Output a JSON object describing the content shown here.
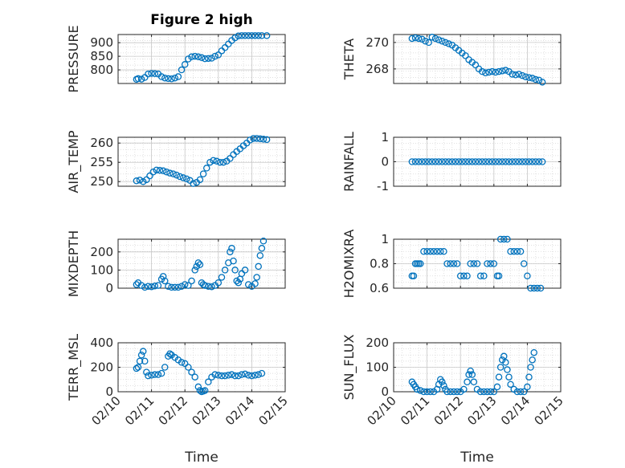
{
  "figure_title": "Figure 2 high",
  "colors": {
    "marker": "#0072bd",
    "axis": "#262626",
    "grid": "#d6d6d6"
  },
  "x_axis": {
    "label": "Time",
    "ticks": [
      {
        "label": "02/10",
        "value": 0
      },
      {
        "label": "02/11",
        "value": 1
      },
      {
        "label": "02/12",
        "value": 2
      },
      {
        "label": "02/13",
        "value": 3
      },
      {
        "label": "02/14",
        "value": 4
      },
      {
        "label": "02/15",
        "value": 5
      }
    ],
    "range": [
      0,
      5
    ]
  },
  "chart_data": [
    {
      "type": "scatter",
      "name": "pressure",
      "title": "Figure 2 high",
      "ylabel": "PRESSURE",
      "ylim": [
        750,
        930
      ],
      "yticks": [
        {
          "label": "800",
          "value": 800
        },
        {
          "label": "850",
          "value": 850
        },
        {
          "label": "900",
          "value": 900
        }
      ],
      "x": [
        0.55,
        0.6,
        0.7,
        0.8,
        0.9,
        1.0,
        1.1,
        1.2,
        1.3,
        1.4,
        1.5,
        1.6,
        1.7,
        1.8,
        1.9,
        2.0,
        2.1,
        2.2,
        2.3,
        2.4,
        2.5,
        2.6,
        2.7,
        2.8,
        2.9,
        3.0,
        3.1,
        3.2,
        3.3,
        3.4,
        3.5,
        3.6,
        3.7,
        3.8,
        3.9,
        4.0,
        4.1,
        4.2,
        4.3,
        4.45
      ],
      "y": [
        765,
        768,
        766,
        772,
        785,
        787,
        786,
        785,
        775,
        770,
        768,
        767,
        770,
        775,
        800,
        820,
        840,
        848,
        850,
        848,
        845,
        841,
        842,
        843,
        850,
        855,
        870,
        882,
        895,
        908,
        918,
        925,
        926,
        926,
        926,
        926,
        926,
        926,
        926,
        926
      ]
    },
    {
      "type": "scatter",
      "name": "theta",
      "title": "",
      "ylabel": "THETA",
      "ylim": [
        266.9,
        270.6
      ],
      "yticks": [
        {
          "label": "268",
          "value": 268
        },
        {
          "label": "270",
          "value": 270
        }
      ],
      "x": [
        0.55,
        0.65,
        0.75,
        0.85,
        0.95,
        1.05,
        1.15,
        1.25,
        1.35,
        1.45,
        1.55,
        1.65,
        1.75,
        1.85,
        1.95,
        2.05,
        2.15,
        2.25,
        2.35,
        2.45,
        2.55,
        2.65,
        2.75,
        2.85,
        2.95,
        3.05,
        3.15,
        3.25,
        3.35,
        3.45,
        3.55,
        3.65,
        3.75,
        3.85,
        3.95,
        4.05,
        4.15,
        4.25,
        4.35,
        4.45
      ],
      "y": [
        270.3,
        270.35,
        270.3,
        270.25,
        270.1,
        270.0,
        270.4,
        270.3,
        270.2,
        270.1,
        270.0,
        269.9,
        269.8,
        269.6,
        269.4,
        269.2,
        269.0,
        268.7,
        268.5,
        268.3,
        268.0,
        267.8,
        267.7,
        267.75,
        267.8,
        267.75,
        267.8,
        267.85,
        267.9,
        267.8,
        267.6,
        267.55,
        267.6,
        267.5,
        267.4,
        267.35,
        267.3,
        267.2,
        267.15,
        267.0
      ]
    },
    {
      "type": "scatter",
      "name": "air_temp",
      "title": "",
      "ylabel": "AIR_TEMP",
      "ylim": [
        248.8,
        261.5
      ],
      "yticks": [
        {
          "label": "250",
          "value": 250
        },
        {
          "label": "255",
          "value": 255
        },
        {
          "label": "260",
          "value": 260
        }
      ],
      "x": [
        0.55,
        0.65,
        0.75,
        0.85,
        0.95,
        1.05,
        1.15,
        1.25,
        1.35,
        1.45,
        1.55,
        1.65,
        1.75,
        1.85,
        1.95,
        2.05,
        2.15,
        2.25,
        2.35,
        2.45,
        2.55,
        2.65,
        2.75,
        2.85,
        2.95,
        3.05,
        3.15,
        3.25,
        3.35,
        3.45,
        3.55,
        3.65,
        3.75,
        3.85,
        3.95,
        4.05,
        4.15,
        4.25,
        4.35,
        4.45
      ],
      "y": [
        250.2,
        250.4,
        250.0,
        250.5,
        251.5,
        252.5,
        253.0,
        252.9,
        252.8,
        252.5,
        252.2,
        252.0,
        251.7,
        251.3,
        251.0,
        250.7,
        250.3,
        249.5,
        249.8,
        250.5,
        252.0,
        253.5,
        255.0,
        255.5,
        255.3,
        255.0,
        255.0,
        255.3,
        256.0,
        257.0,
        257.8,
        258.5,
        259.3,
        260.0,
        260.8,
        261.2,
        261.2,
        261.1,
        261.0,
        260.9
      ]
    },
    {
      "type": "scatter",
      "name": "rainfall",
      "title": "",
      "ylabel": "RAINFALL",
      "ylim": [
        -1,
        1
      ],
      "yticks": [
        {
          "label": "-1",
          "value": -1
        },
        {
          "label": "0",
          "value": 0
        },
        {
          "label": "1",
          "value": 1
        }
      ],
      "x": [
        0.55,
        0.65,
        0.75,
        0.85,
        0.95,
        1.05,
        1.15,
        1.25,
        1.35,
        1.45,
        1.55,
        1.65,
        1.75,
        1.85,
        1.95,
        2.05,
        2.15,
        2.25,
        2.35,
        2.45,
        2.55,
        2.65,
        2.75,
        2.85,
        2.95,
        3.05,
        3.15,
        3.25,
        3.35,
        3.45,
        3.55,
        3.65,
        3.75,
        3.85,
        3.95,
        4.05,
        4.15,
        4.25,
        4.35,
        4.45
      ],
      "y": [
        0,
        0,
        0,
        0,
        0,
        0,
        0,
        0,
        0,
        0,
        0,
        0,
        0,
        0,
        0,
        0,
        0,
        0,
        0,
        0,
        0,
        0,
        0,
        0,
        0,
        0,
        0,
        0,
        0,
        0,
        0,
        0,
        0,
        0,
        0,
        0,
        0,
        0,
        0,
        0
      ]
    },
    {
      "type": "scatter",
      "name": "mixdepth",
      "title": "",
      "ylabel": "MIXDEPTH",
      "ylim": [
        0,
        270
      ],
      "yticks": [
        {
          "label": "0",
          "value": 0
        },
        {
          "label": "100",
          "value": 100
        },
        {
          "label": "200",
          "value": 200
        }
      ],
      "x": [
        0.55,
        0.6,
        0.7,
        0.8,
        0.9,
        1.0,
        1.1,
        1.2,
        1.3,
        1.35,
        1.4,
        1.5,
        1.6,
        1.7,
        1.8,
        1.9,
        2.0,
        2.1,
        2.2,
        2.3,
        2.35,
        2.4,
        2.45,
        2.5,
        2.55,
        2.6,
        2.7,
        2.8,
        2.9,
        3.0,
        3.1,
        3.2,
        3.3,
        3.35,
        3.4,
        3.45,
        3.5,
        3.55,
        3.6,
        3.65,
        3.7,
        3.8,
        3.9,
        4.0,
        4.1,
        4.15,
        4.2,
        4.25,
        4.3,
        4.35
      ],
      "y": [
        20,
        30,
        15,
        5,
        10,
        8,
        12,
        15,
        50,
        65,
        40,
        10,
        5,
        5,
        5,
        10,
        20,
        15,
        40,
        100,
        120,
        140,
        130,
        30,
        20,
        15,
        10,
        8,
        15,
        30,
        60,
        100,
        140,
        200,
        220,
        150,
        100,
        40,
        30,
        50,
        80,
        100,
        20,
        10,
        25,
        60,
        120,
        180,
        220,
        260
      ]
    },
    {
      "type": "scatter",
      "name": "h2omixra",
      "title": "",
      "ylabel": "H2OMIXRA",
      "ylim": [
        0.6,
        1.0
      ],
      "yticks": [
        {
          "label": "0.6",
          "value": 0.6
        },
        {
          "label": "0.8",
          "value": 0.8
        },
        {
          "label": "1",
          "value": 1
        }
      ],
      "x": [
        0.55,
        0.6,
        0.65,
        0.7,
        0.75,
        0.8,
        0.9,
        1.0,
        1.1,
        1.2,
        1.3,
        1.4,
        1.5,
        1.6,
        1.7,
        1.8,
        1.9,
        2.0,
        2.1,
        2.2,
        2.3,
        2.4,
        2.5,
        2.6,
        2.7,
        2.8,
        2.9,
        3.0,
        3.1,
        3.15,
        3.2,
        3.3,
        3.4,
        3.5,
        3.6,
        3.7,
        3.8,
        3.9,
        4.0,
        4.1,
        4.2,
        4.3,
        4.4
      ],
      "y": [
        0.7,
        0.7,
        0.8,
        0.8,
        0.8,
        0.8,
        0.9,
        0.9,
        0.9,
        0.9,
        0.9,
        0.9,
        0.9,
        0.8,
        0.8,
        0.8,
        0.8,
        0.7,
        0.7,
        0.7,
        0.8,
        0.8,
        0.8,
        0.7,
        0.7,
        0.8,
        0.8,
        0.8,
        0.7,
        0.7,
        1.0,
        1.0,
        1.0,
        0.9,
        0.9,
        0.9,
        0.9,
        0.8,
        0.7,
        0.6,
        0.6,
        0.6,
        0.6
      ]
    },
    {
      "type": "scatter",
      "name": "terr_msl",
      "title": "",
      "ylabel": "TERR_MSL",
      "ylim": [
        0,
        400
      ],
      "yticks": [
        {
          "label": "0",
          "value": 0
        },
        {
          "label": "200",
          "value": 200
        },
        {
          "label": "400",
          "value": 400
        }
      ],
      "x": [
        0.55,
        0.6,
        0.65,
        0.7,
        0.75,
        0.8,
        0.85,
        0.9,
        1.0,
        1.1,
        1.2,
        1.3,
        1.4,
        1.5,
        1.55,
        1.6,
        1.7,
        1.8,
        1.9,
        2.0,
        2.1,
        2.2,
        2.3,
        2.4,
        2.45,
        2.5,
        2.55,
        2.6,
        2.7,
        2.8,
        2.9,
        3.0,
        3.1,
        3.2,
        3.3,
        3.4,
        3.5,
        3.6,
        3.7,
        3.8,
        3.9,
        4.0,
        4.1,
        4.2,
        4.3
      ],
      "y": [
        190,
        200,
        250,
        300,
        330,
        250,
        160,
        130,
        135,
        140,
        140,
        150,
        200,
        290,
        310,
        300,
        280,
        260,
        240,
        230,
        200,
        160,
        120,
        40,
        10,
        0,
        5,
        10,
        80,
        120,
        140,
        135,
        130,
        130,
        135,
        140,
        130,
        130,
        140,
        145,
        135,
        130,
        135,
        140,
        150
      ]
    },
    {
      "type": "scatter",
      "name": "sun_flux",
      "title": "",
      "ylabel": "SUN_FLUX",
      "ylim": [
        0,
        200
      ],
      "yticks": [
        {
          "label": "0",
          "value": 0
        },
        {
          "label": "100",
          "value": 100
        },
        {
          "label": "200",
          "value": 200
        }
      ],
      "x": [
        0.55,
        0.6,
        0.65,
        0.7,
        0.8,
        0.9,
        1.0,
        1.1,
        1.2,
        1.3,
        1.35,
        1.4,
        1.45,
        1.5,
        1.55,
        1.6,
        1.7,
        1.8,
        1.9,
        2.0,
        2.1,
        2.2,
        2.25,
        2.3,
        2.35,
        2.4,
        2.5,
        2.6,
        2.7,
        2.8,
        2.9,
        3.0,
        3.1,
        3.15,
        3.2,
        3.25,
        3.3,
        3.35,
        3.4,
        3.45,
        3.5,
        3.6,
        3.7,
        3.8,
        3.9,
        4.0,
        4.05,
        4.1,
        4.15,
        4.2
      ],
      "y": [
        40,
        30,
        20,
        10,
        5,
        0,
        0,
        0,
        0,
        10,
        30,
        50,
        40,
        25,
        10,
        0,
        0,
        0,
        0,
        0,
        10,
        40,
        70,
        85,
        70,
        40,
        10,
        0,
        0,
        0,
        0,
        0,
        20,
        60,
        100,
        130,
        145,
        120,
        90,
        60,
        30,
        10,
        0,
        0,
        0,
        20,
        60,
        100,
        130,
        160
      ]
    }
  ]
}
